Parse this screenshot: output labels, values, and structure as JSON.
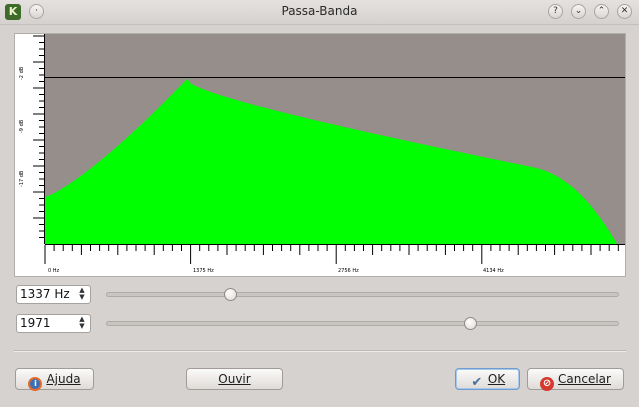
{
  "window": {
    "title": "Passa-Banda",
    "app_icon": "K",
    "buttons": {
      "help": "?",
      "minimize": "⌄",
      "maximize": "⌃",
      "close": "✕"
    }
  },
  "graph": {
    "background": "#958e8b",
    "fill_color": "#00ff00",
    "db_labels": [
      "-2 dB",
      "-9 dB",
      "-17 dB"
    ],
    "freq_labels": [
      "0 Hz",
      "1375 Hz",
      "2756 Hz",
      "4134 Hz"
    ],
    "response_shape": "band-pass"
  },
  "controls": {
    "frequency": {
      "value": "1337 Hz",
      "slider_fraction": 0.24
    },
    "width": {
      "value": "1971",
      "slider_fraction": 0.71
    }
  },
  "buttons": {
    "help": "Ajuda",
    "listen": "Ouvir",
    "ok": "OK",
    "cancel": "Cancelar"
  },
  "icons": [
    "help-icon",
    "ok-check-icon",
    "cancel-icon"
  ]
}
